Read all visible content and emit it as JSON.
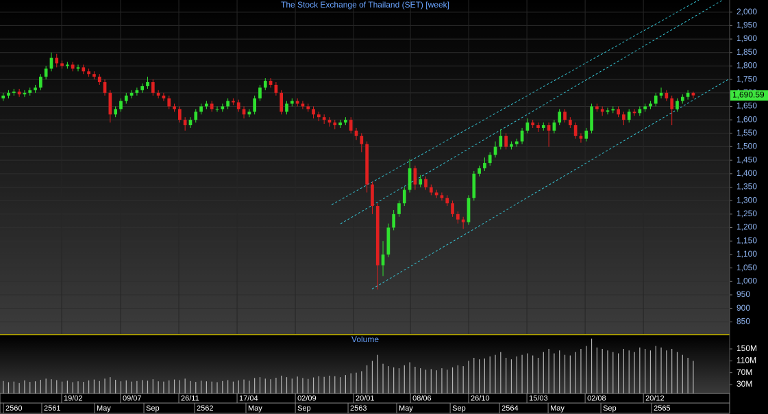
{
  "chart_data": {
    "type": "candlestick",
    "title": "The Stock Exchange of Thailand (SET) [week]",
    "up_color": "#2fe02f",
    "down_color": "#e02020",
    "open": [
      1680,
      1690,
      1700,
      1705,
      1695,
      1700,
      1710,
      1720,
      1760,
      1790,
      1830,
      1810,
      1800,
      1805,
      1790,
      1795,
      1780,
      1770,
      1760,
      1740,
      1700,
      1620,
      1640,
      1670,
      1690,
      1700,
      1710,
      1725,
      1740,
      1700,
      1690,
      1680,
      1650,
      1640,
      1600,
      1580,
      1600,
      1630,
      1650,
      1660,
      1640,
      1640,
      1650,
      1670,
      1665,
      1640,
      1620,
      1630,
      1680,
      1720,
      1745,
      1730,
      1700,
      1630,
      1660,
      1670,
      1660,
      1650,
      1640,
      1620,
      1610,
      1600,
      1590,
      1580,
      1590,
      1600,
      1560,
      1540,
      1510,
      1360,
      1280,
      1060,
      1100,
      1200,
      1250,
      1290,
      1340,
      1420,
      1360,
      1380,
      1350,
      1330,
      1320,
      1310,
      1290,
      1250,
      1230,
      1220,
      1310,
      1400,
      1420,
      1440,
      1470,
      1500,
      1540,
      1500,
      1510,
      1520,
      1560,
      1590,
      1580,
      1570,
      1580,
      1560,
      1590,
      1630,
      1600,
      1580,
      1540,
      1530,
      1560,
      1650,
      1640,
      1630,
      1635,
      1640,
      1620,
      1600,
      1630,
      1625,
      1640,
      1650,
      1660,
      1690,
      1700,
      1680,
      1640,
      1670,
      1685,
      1700
    ],
    "high": [
      1700,
      1710,
      1715,
      1715,
      1710,
      1720,
      1730,
      1770,
      1800,
      1850,
      1845,
      1820,
      1815,
      1815,
      1805,
      1805,
      1790,
      1780,
      1770,
      1750,
      1710,
      1650,
      1680,
      1700,
      1710,
      1720,
      1735,
      1760,
      1750,
      1710,
      1700,
      1690,
      1660,
      1650,
      1610,
      1610,
      1640,
      1660,
      1670,
      1670,
      1650,
      1660,
      1680,
      1680,
      1675,
      1650,
      1640,
      1690,
      1730,
      1755,
      1755,
      1740,
      1710,
      1670,
      1680,
      1680,
      1670,
      1660,
      1650,
      1630,
      1620,
      1610,
      1600,
      1600,
      1610,
      1610,
      1570,
      1550,
      1520,
      1370,
      1290,
      1150,
      1215,
      1265,
      1300,
      1350,
      1455,
      1430,
      1395,
      1390,
      1360,
      1340,
      1330,
      1320,
      1300,
      1260,
      1240,
      1320,
      1410,
      1430,
      1460,
      1480,
      1520,
      1565,
      1550,
      1520,
      1530,
      1570,
      1605,
      1600,
      1590,
      1590,
      1590,
      1600,
      1640,
      1640,
      1610,
      1590,
      1550,
      1570,
      1660,
      1660,
      1650,
      1645,
      1650,
      1650,
      1630,
      1640,
      1640,
      1650,
      1660,
      1670,
      1700,
      1720,
      1710,
      1690,
      1680,
      1695,
      1710,
      1705
    ],
    "low": [
      1670,
      1680,
      1690,
      1685,
      1685,
      1690,
      1700,
      1710,
      1750,
      1780,
      1795,
      1790,
      1790,
      1780,
      1780,
      1770,
      1760,
      1750,
      1730,
      1690,
      1590,
      1610,
      1630,
      1660,
      1680,
      1690,
      1700,
      1715,
      1690,
      1680,
      1670,
      1640,
      1630,
      1590,
      1560,
      1570,
      1590,
      1620,
      1640,
      1630,
      1630,
      1630,
      1640,
      1655,
      1630,
      1605,
      1610,
      1620,
      1670,
      1710,
      1720,
      1690,
      1620,
      1620,
      1650,
      1650,
      1640,
      1630,
      1605,
      1595,
      1585,
      1575,
      1565,
      1570,
      1580,
      1550,
      1525,
      1480,
      1330,
      1250,
      970,
      1020,
      1090,
      1190,
      1240,
      1280,
      1330,
      1340,
      1350,
      1340,
      1320,
      1310,
      1300,
      1280,
      1240,
      1215,
      1195,
      1210,
      1300,
      1390,
      1410,
      1430,
      1460,
      1490,
      1490,
      1490,
      1500,
      1510,
      1550,
      1570,
      1555,
      1560,
      1500,
      1550,
      1580,
      1590,
      1570,
      1530,
      1515,
      1520,
      1550,
      1630,
      1615,
      1620,
      1625,
      1610,
      1580,
      1590,
      1615,
      1615,
      1630,
      1640,
      1650,
      1680,
      1670,
      1580,
      1630,
      1660,
      1675,
      1680
    ],
    "close": [
      1690,
      1700,
      1705,
      1695,
      1700,
      1710,
      1720,
      1760,
      1790,
      1830,
      1810,
      1800,
      1805,
      1790,
      1795,
      1780,
      1770,
      1760,
      1740,
      1700,
      1620,
      1640,
      1670,
      1690,
      1700,
      1710,
      1725,
      1740,
      1700,
      1690,
      1680,
      1650,
      1640,
      1600,
      1580,
      1600,
      1630,
      1650,
      1660,
      1640,
      1640,
      1650,
      1670,
      1665,
      1640,
      1620,
      1630,
      1680,
      1720,
      1745,
      1730,
      1700,
      1630,
      1660,
      1670,
      1660,
      1650,
      1640,
      1620,
      1610,
      1600,
      1590,
      1580,
      1590,
      1600,
      1560,
      1540,
      1510,
      1360,
      1280,
      1060,
      1100,
      1200,
      1250,
      1290,
      1340,
      1420,
      1360,
      1380,
      1350,
      1330,
      1320,
      1310,
      1290,
      1250,
      1230,
      1220,
      1310,
      1400,
      1420,
      1440,
      1470,
      1500,
      1540,
      1500,
      1510,
      1520,
      1560,
      1590,
      1580,
      1570,
      1580,
      1560,
      1590,
      1630,
      1600,
      1580,
      1540,
      1530,
      1560,
      1650,
      1640,
      1630,
      1635,
      1640,
      1620,
      1600,
      1630,
      1625,
      1640,
      1650,
      1660,
      1690,
      1700,
      1680,
      1640,
      1670,
      1685,
      1700,
      1690.59
    ],
    "last_price": {
      "value": 1690.59,
      "label": "1,690.59"
    },
    "xlim": [
      -0.6,
      135.8
    ],
    "ylim": [
      805,
      2045
    ],
    "yticks": [
      850,
      900,
      950,
      {
        "value": 1000,
        "label": "1,000"
      },
      {
        "value": 1050,
        "label": "1,050"
      },
      {
        "value": 1100,
        "label": "1,100"
      },
      {
        "value": 1150,
        "label": "1,150"
      },
      {
        "value": 1200,
        "label": "1,200"
      },
      {
        "value": 1250,
        "label": "1,250"
      },
      {
        "value": 1300,
        "label": "1,300"
      },
      {
        "value": 1350,
        "label": "1,350"
      },
      {
        "value": 1400,
        "label": "1,400"
      },
      {
        "value": 1450,
        "label": "1,450"
      },
      {
        "value": 1500,
        "label": "1,500"
      },
      {
        "value": 1550,
        "label": "1,550"
      },
      {
        "value": 1600,
        "label": "1,600"
      },
      {
        "value": 1650,
        "label": "1,650"
      },
      {
        "value": 1700,
        "label": "1,700"
      },
      {
        "value": 1750,
        "label": "1,750"
      },
      {
        "value": 1800,
        "label": "1,800"
      },
      {
        "value": 1850,
        "label": "1,850"
      },
      {
        "value": 1900,
        "label": "1,900"
      },
      {
        "value": 1950,
        "label": "1,950"
      },
      {
        "value": 2000,
        "label": "2,000"
      }
    ],
    "xticks": [
      {
        "value": 10.93,
        "label": "19/02"
      },
      {
        "value": 21.94,
        "label": "09/07"
      },
      {
        "value": 32.83,
        "label": "26/11"
      },
      {
        "value": 43.72,
        "label": "17/04"
      },
      {
        "value": 54.61,
        "label": "02/09"
      },
      {
        "value": 65.49,
        "label": "20/01"
      },
      {
        "value": 76.13,
        "label": "08/06"
      },
      {
        "value": 87.01,
        "label": "26/10"
      },
      {
        "value": 97.9,
        "label": "15/03"
      },
      {
        "value": 108.79,
        "label": "02/08"
      },
      {
        "value": 119.68,
        "label": "20/12"
      }
    ],
    "xticks2": [
      {
        "value": 0.04,
        "label": "2560"
      },
      {
        "value": 7.21,
        "label": "2561"
      },
      {
        "value": 17.08,
        "label": "May"
      },
      {
        "value": 26.3,
        "label": "Sep"
      },
      {
        "value": 35.78,
        "label": "2562"
      },
      {
        "value": 45.38,
        "label": "May"
      },
      {
        "value": 54.61,
        "label": "Sep"
      },
      {
        "value": 64.47,
        "label": "2563"
      },
      {
        "value": 73.56,
        "label": "May"
      },
      {
        "value": 83.56,
        "label": "Sep"
      },
      {
        "value": 92.78,
        "label": "2564"
      },
      {
        "value": 101.87,
        "label": "May"
      },
      {
        "value": 111.73,
        "label": "Sep"
      },
      {
        "value": 121.21,
        "label": "2565"
      }
    ],
    "trend_lines": [
      {
        "color": "#36c6d6",
        "x": [
          61.4,
          130.05
        ],
        "y": [
          1285,
          2045
        ]
      },
      {
        "color": "#36c6d6",
        "x": [
          63.06,
          134.5
        ],
        "y": [
          1214,
          2045
        ]
      },
      {
        "color": "#36c6d6",
        "x": [
          68.95,
          135.8
        ],
        "y": [
          972,
          1753
        ]
      }
    ],
    "volume": {
      "title": "Volume",
      "color": "#b4b4b4",
      "values": [
        42,
        38,
        40,
        35,
        44,
        39,
        41,
        46,
        50,
        48,
        45,
        40,
        43,
        38,
        41,
        39,
        44,
        47,
        42,
        50,
        55,
        46,
        41,
        44,
        40,
        42,
        45,
        43,
        48,
        41,
        40,
        44,
        47,
        45,
        50,
        42,
        39,
        43,
        41,
        40,
        38,
        42,
        45,
        40,
        44,
        47,
        43,
        52,
        55,
        50,
        48,
        53,
        60,
        55,
        50,
        57,
        52,
        49,
        54,
        58,
        56,
        60,
        58,
        55,
        62,
        68,
        70,
        75,
        95,
        110,
        130,
        100,
        92,
        88,
        85,
        95,
        105,
        90,
        85,
        80,
        82,
        78,
        85,
        80,
        88,
        95,
        92,
        110,
        120,
        115,
        118,
        125,
        130,
        140,
        120,
        115,
        125,
        130,
        135,
        128,
        120,
        140,
        150,
        135,
        145,
        130,
        128,
        140,
        150,
        160,
        185,
        155,
        150,
        145,
        140,
        135,
        150,
        145,
        140,
        155,
        150,
        145,
        160,
        155,
        145,
        150,
        140,
        130,
        120,
        110
      ],
      "ylim": [
        0,
        196
      ],
      "yticks": [
        {
          "value": 30,
          "label": "30M"
        },
        {
          "value": 70,
          "label": "70M"
        },
        {
          "value": 110,
          "label": "110M"
        },
        {
          "value": 150,
          "label": "150M"
        }
      ]
    }
  }
}
